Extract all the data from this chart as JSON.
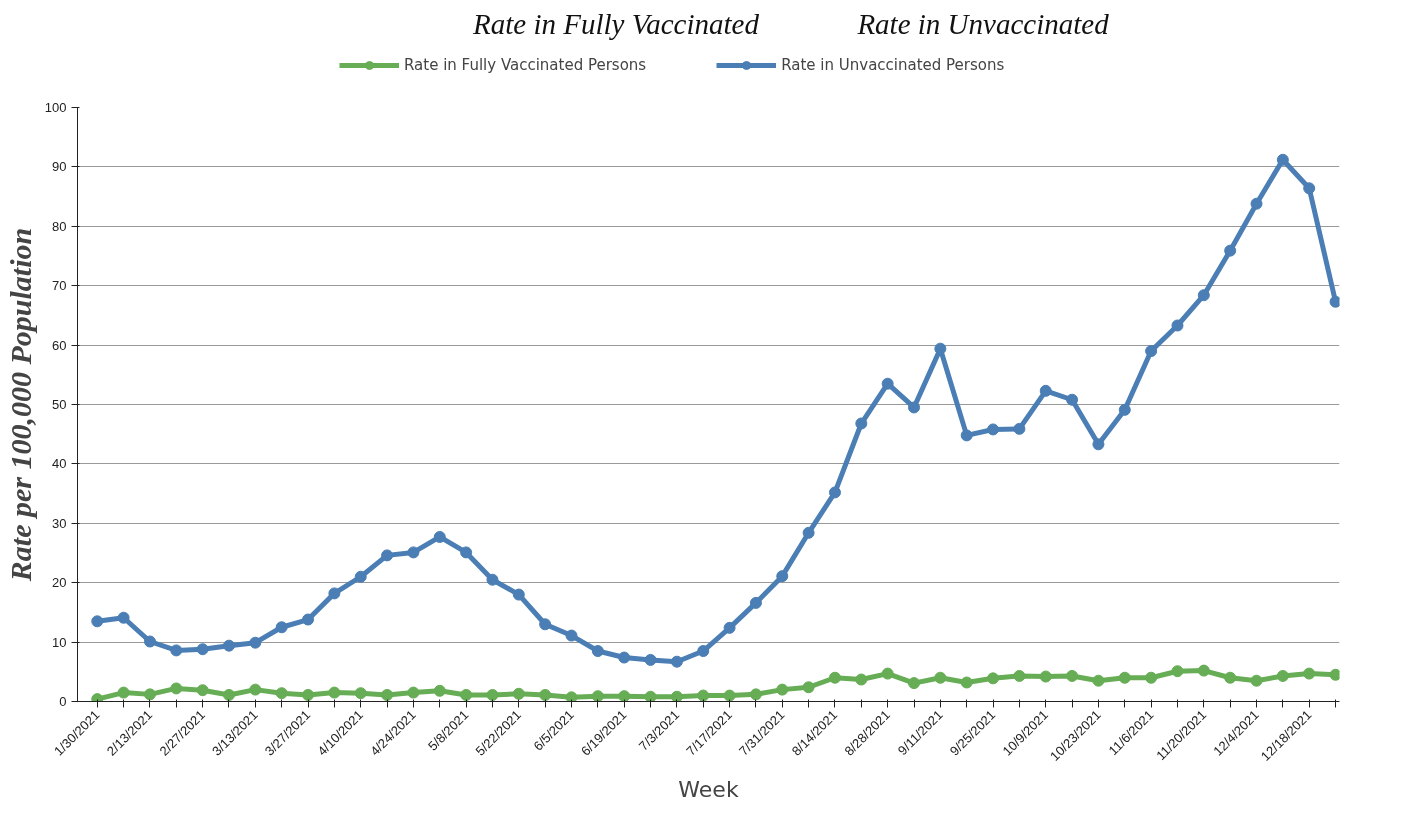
{
  "chart_data": {
    "type": "line",
    "xlabel": "Week",
    "ylabel": "Rate per 100,000 Population",
    "annotations": [
      "Rate in Fully Vaccinated",
      "Rate in Unvaccinated"
    ],
    "categories": [
      "1/30/2021",
      null,
      "2/13/2021",
      null,
      "2/27/2021",
      null,
      "3/13/2021",
      null,
      "3/27/2021",
      null,
      "4/10/2021",
      null,
      "4/24/2021",
      null,
      "5/8/2021",
      null,
      "5/22/2021",
      null,
      "6/5/2021",
      null,
      "6/19/2021",
      null,
      "7/3/2021",
      null,
      "7/17/2021",
      null,
      "7/31/2021",
      null,
      "8/14/2021",
      null,
      "8/28/2021",
      null,
      "9/11/2021",
      null,
      "9/25/2021",
      null,
      "10/9/2021",
      null,
      "10/23/2021",
      null,
      "11/6/2021",
      null,
      "11/20/2021",
      null,
      "12/4/2021",
      null,
      "12/18/2021",
      null
    ],
    "series": [
      {
        "name": "Rate in Fully Vaccinated Persons",
        "color": "#66ad55",
        "values": [
          0.4,
          1.5,
          1.2,
          2.2,
          1.9,
          1.1,
          2.0,
          1.4,
          1.1,
          1.5,
          1.4,
          1.1,
          1.5,
          1.8,
          1.1,
          1.1,
          1.3,
          1.1,
          0.7,
          0.9,
          0.9,
          0.8,
          0.8,
          1.0,
          1.0,
          1.2,
          2.0,
          2.4,
          4.0,
          3.7,
          4.7,
          3.1,
          4.0,
          3.2,
          3.9,
          4.3,
          4.2,
          4.3,
          3.5,
          4.0,
          4.0,
          5.1,
          5.2,
          4.0,
          3.5,
          4.3,
          4.7,
          4.5
        ]
      },
      {
        "name": "Rate in Unvaccinated Persons",
        "color": "#4a7eb4",
        "values": [
          13.5,
          14.1,
          10.1,
          8.6,
          8.8,
          9.4,
          9.9,
          12.5,
          13.8,
          18.2,
          21.0,
          24.6,
          25.1,
          27.7,
          25.1,
          20.5,
          18.0,
          13.0,
          11.1,
          8.5,
          7.4,
          7.0,
          6.7,
          8.5,
          12.4,
          16.6,
          21.1,
          28.4,
          35.2,
          46.8,
          53.5,
          49.5,
          59.4,
          44.8,
          45.8,
          45.9,
          52.3,
          50.8,
          43.3,
          49.1,
          59.0,
          63.3,
          68.4,
          75.9,
          83.8,
          91.2,
          86.4,
          67.3
        ]
      }
    ],
    "ylim": [
      0,
      100
    ],
    "yticks": [
      0,
      10,
      20,
      30,
      40,
      50,
      60,
      70,
      80,
      90,
      100
    ],
    "grid": "y",
    "legend": "top",
    "marker": "circle",
    "line_style": "solid"
  }
}
